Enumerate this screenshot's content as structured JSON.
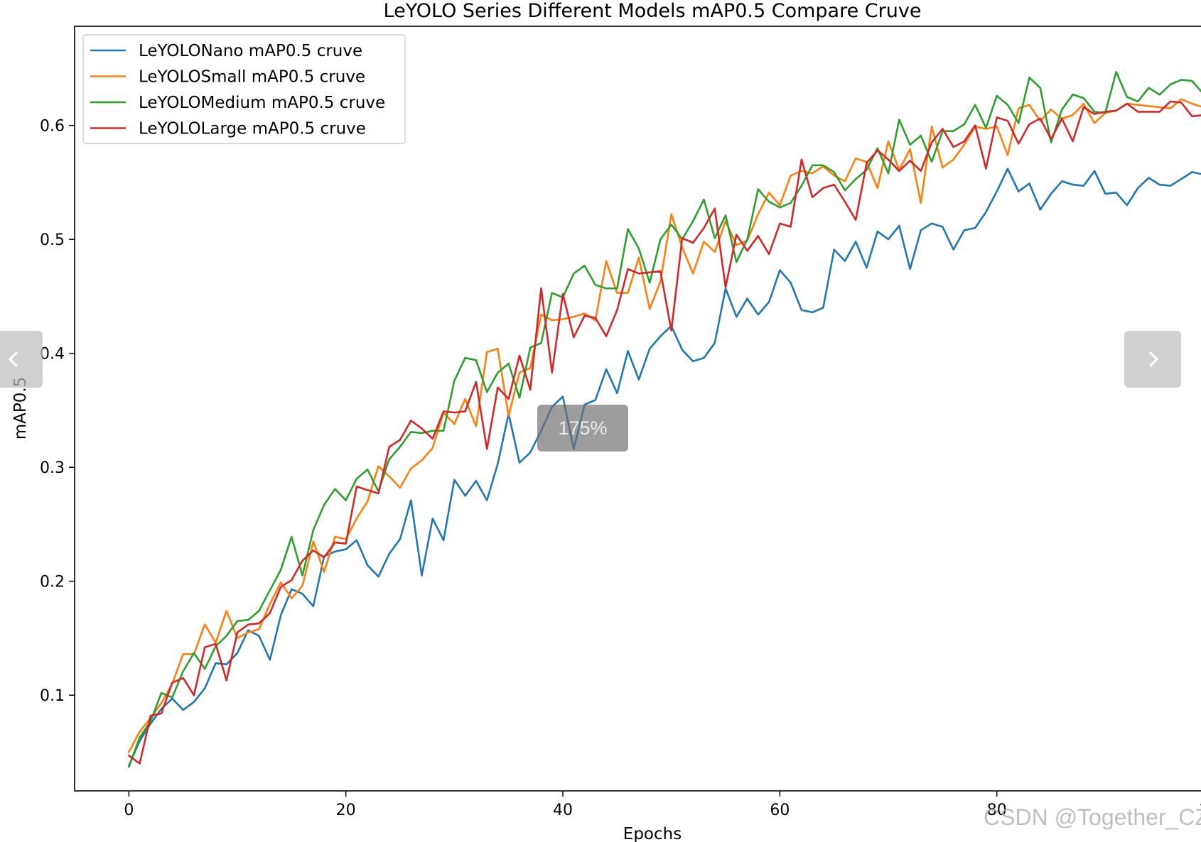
{
  "viewer": {
    "zoom_label": "175%",
    "watermark": "CSDN @Together_CZ",
    "prev_icon": "chevron-left-icon",
    "next_icon": "chevron-right-icon"
  },
  "chart_data": {
    "type": "line",
    "title": "LeYOLO Series Different Models mAP0.5 Compare Cruve",
    "xlabel": "Epochs",
    "ylabel": "mAP0.5",
    "xlim": [
      -5,
      99.8
    ],
    "ylim": [
      0.016,
      0.687
    ],
    "xticks": [
      0,
      20,
      40,
      60,
      80,
      100
    ],
    "yticks": [
      0.1,
      0.2,
      0.3,
      0.4,
      0.5,
      0.6
    ],
    "grid": false,
    "legend_position": "upper-left",
    "x": [
      0,
      1,
      2,
      3,
      4,
      5,
      6,
      7,
      8,
      9,
      10,
      11,
      12,
      13,
      14,
      15,
      16,
      17,
      18,
      19,
      20,
      21,
      22,
      23,
      24,
      25,
      26,
      27,
      28,
      29,
      30,
      31,
      32,
      33,
      34,
      35,
      36,
      37,
      38,
      39,
      40,
      41,
      42,
      43,
      44,
      45,
      46,
      47,
      48,
      49,
      50,
      51,
      52,
      53,
      54,
      55,
      56,
      57,
      58,
      59,
      60,
      61,
      62,
      63,
      64,
      65,
      66,
      67,
      68,
      69,
      70,
      71,
      72,
      73,
      74,
      75,
      76,
      77,
      78,
      79,
      80,
      81,
      82,
      83,
      84,
      85,
      86,
      87,
      88,
      89,
      90,
      91,
      92,
      93,
      94,
      95,
      96,
      97,
      98,
      99
    ],
    "series": [
      {
        "name": "LeYOLONano mAP0.5 cruve",
        "color": "#1f77b4",
        "values": [
          0.038,
          0.06,
          0.075,
          0.088,
          0.097,
          0.087,
          0.094,
          0.106,
          0.128,
          0.127,
          0.137,
          0.157,
          0.152,
          0.131,
          0.17,
          0.193,
          0.189,
          0.178,
          0.222,
          0.226,
          0.228,
          0.236,
          0.214,
          0.204,
          0.224,
          0.237,
          0.271,
          0.205,
          0.255,
          0.236,
          0.289,
          0.275,
          0.288,
          0.271,
          0.303,
          0.347,
          0.304,
          0.313,
          0.332,
          0.353,
          0.362,
          0.316,
          0.355,
          0.359,
          0.386,
          0.365,
          0.402,
          0.377,
          0.404,
          0.415,
          0.424,
          0.403,
          0.393,
          0.396,
          0.409,
          0.457,
          0.432,
          0.448,
          0.434,
          0.445,
          0.473,
          0.462,
          0.438,
          0.436,
          0.44,
          0.491,
          0.481,
          0.498,
          0.475,
          0.507,
          0.5,
          0.512,
          0.474,
          0.508,
          0.514,
          0.511,
          0.491,
          0.508,
          0.51,
          0.524,
          0.542,
          0.562,
          0.542,
          0.549,
          0.526,
          0.54,
          0.551,
          0.548,
          0.547,
          0.56,
          0.54,
          0.541,
          0.53,
          0.545,
          0.554,
          0.548,
          0.547,
          0.553,
          0.559,
          0.557
        ]
      },
      {
        "name": "LeYOLOSmall mAP0.5 cruve",
        "color": "#ff7f0e",
        "values": [
          0.05,
          0.068,
          0.08,
          0.093,
          0.11,
          0.136,
          0.136,
          0.162,
          0.146,
          0.174,
          0.15,
          0.155,
          0.158,
          0.18,
          0.199,
          0.185,
          0.196,
          0.235,
          0.208,
          0.239,
          0.237,
          0.255,
          0.27,
          0.301,
          0.292,
          0.282,
          0.299,
          0.306,
          0.317,
          0.348,
          0.338,
          0.36,
          0.336,
          0.401,
          0.404,
          0.345,
          0.383,
          0.387,
          0.434,
          0.429,
          0.43,
          0.432,
          0.435,
          0.429,
          0.481,
          0.453,
          0.453,
          0.484,
          0.439,
          0.463,
          0.522,
          0.493,
          0.47,
          0.498,
          0.489,
          0.516,
          0.495,
          0.499,
          0.522,
          0.541,
          0.53,
          0.556,
          0.56,
          0.558,
          0.564,
          0.556,
          0.551,
          0.571,
          0.568,
          0.545,
          0.586,
          0.561,
          0.579,
          0.532,
          0.599,
          0.563,
          0.57,
          0.583,
          0.599,
          0.597,
          0.599,
          0.574,
          0.615,
          0.618,
          0.604,
          0.614,
          0.606,
          0.609,
          0.619,
          0.602,
          0.611,
          0.613,
          0.619,
          0.618,
          0.617,
          0.616,
          0.615,
          0.623,
          0.619,
          0.616
        ]
      },
      {
        "name": "LeYOLOMedium mAP0.5 cruve",
        "color": "#2ca02c",
        "values": [
          0.037,
          0.063,
          0.077,
          0.102,
          0.098,
          0.121,
          0.137,
          0.123,
          0.143,
          0.152,
          0.165,
          0.166,
          0.174,
          0.192,
          0.21,
          0.239,
          0.205,
          0.245,
          0.267,
          0.281,
          0.271,
          0.29,
          0.298,
          0.279,
          0.307,
          0.318,
          0.331,
          0.33,
          0.332,
          0.332,
          0.376,
          0.396,
          0.394,
          0.366,
          0.383,
          0.391,
          0.361,
          0.405,
          0.409,
          0.453,
          0.449,
          0.47,
          0.477,
          0.46,
          0.457,
          0.457,
          0.509,
          0.492,
          0.462,
          0.5,
          0.513,
          0.5,
          0.516,
          0.535,
          0.501,
          0.521,
          0.48,
          0.5,
          0.544,
          0.533,
          0.528,
          0.532,
          0.547,
          0.565,
          0.565,
          0.559,
          0.543,
          0.553,
          0.561,
          0.58,
          0.558,
          0.605,
          0.583,
          0.591,
          0.568,
          0.595,
          0.595,
          0.601,
          0.618,
          0.598,
          0.626,
          0.618,
          0.602,
          0.642,
          0.633,
          0.585,
          0.614,
          0.627,
          0.624,
          0.612,
          0.611,
          0.647,
          0.625,
          0.621,
          0.633,
          0.627,
          0.636,
          0.64,
          0.639,
          0.628
        ]
      },
      {
        "name": "LeYOLOLarge mAP0.5 cruve",
        "color": "#d62728",
        "values": [
          0.047,
          0.04,
          0.082,
          0.084,
          0.111,
          0.115,
          0.1,
          0.142,
          0.145,
          0.113,
          0.155,
          0.162,
          0.163,
          0.172,
          0.195,
          0.201,
          0.218,
          0.227,
          0.221,
          0.234,
          0.233,
          0.283,
          0.28,
          0.277,
          0.318,
          0.324,
          0.341,
          0.334,
          0.325,
          0.349,
          0.348,
          0.349,
          0.375,
          0.316,
          0.37,
          0.36,
          0.398,
          0.368,
          0.457,
          0.383,
          0.452,
          0.414,
          0.433,
          0.431,
          0.415,
          0.438,
          0.474,
          0.47,
          0.471,
          0.472,
          0.42,
          0.501,
          0.497,
          0.51,
          0.527,
          0.458,
          0.504,
          0.49,
          0.503,
          0.487,
          0.514,
          0.511,
          0.57,
          0.537,
          0.545,
          0.548,
          0.533,
          0.517,
          0.567,
          0.578,
          0.57,
          0.56,
          0.569,
          0.56,
          0.585,
          0.597,
          0.581,
          0.586,
          0.6,
          0.562,
          0.607,
          0.604,
          0.584,
          0.601,
          0.606,
          0.588,
          0.606,
          0.586,
          0.616,
          0.61,
          0.612,
          0.613,
          0.619,
          0.612,
          0.612,
          0.612,
          0.621,
          0.62,
          0.608,
          0.609
        ]
      }
    ]
  }
}
